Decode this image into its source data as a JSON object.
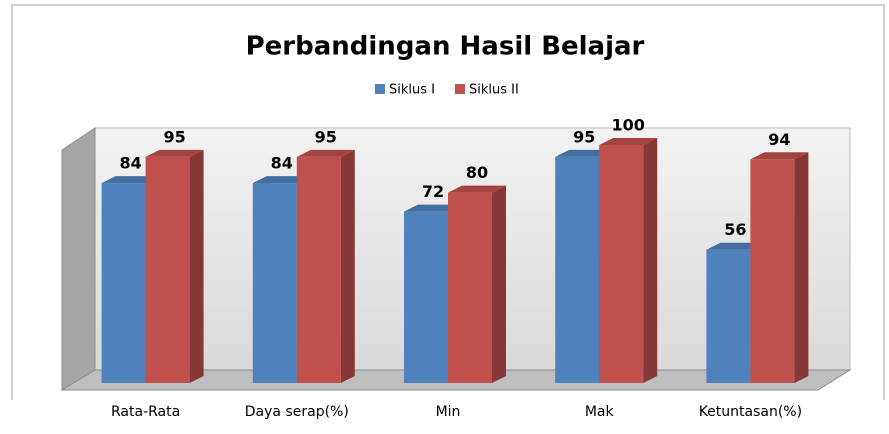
{
  "chart_data": {
    "type": "bar3d",
    "title": "Perbandingan Hasil Belajar",
    "categories": [
      "Rata-Rata",
      "Daya serap(%)",
      "Min",
      "Mak",
      "Ketuntasan(%)"
    ],
    "series": [
      {
        "name": "Siklus I",
        "color": "#4f81bd",
        "values": [
          84,
          84,
          72,
          95,
          56
        ]
      },
      {
        "name": "Siklus II",
        "color": "#c0504d",
        "values": [
          95,
          95,
          80,
          100,
          94
        ]
      }
    ],
    "ylim": [
      0,
      100
    ],
    "legend": "top"
  }
}
